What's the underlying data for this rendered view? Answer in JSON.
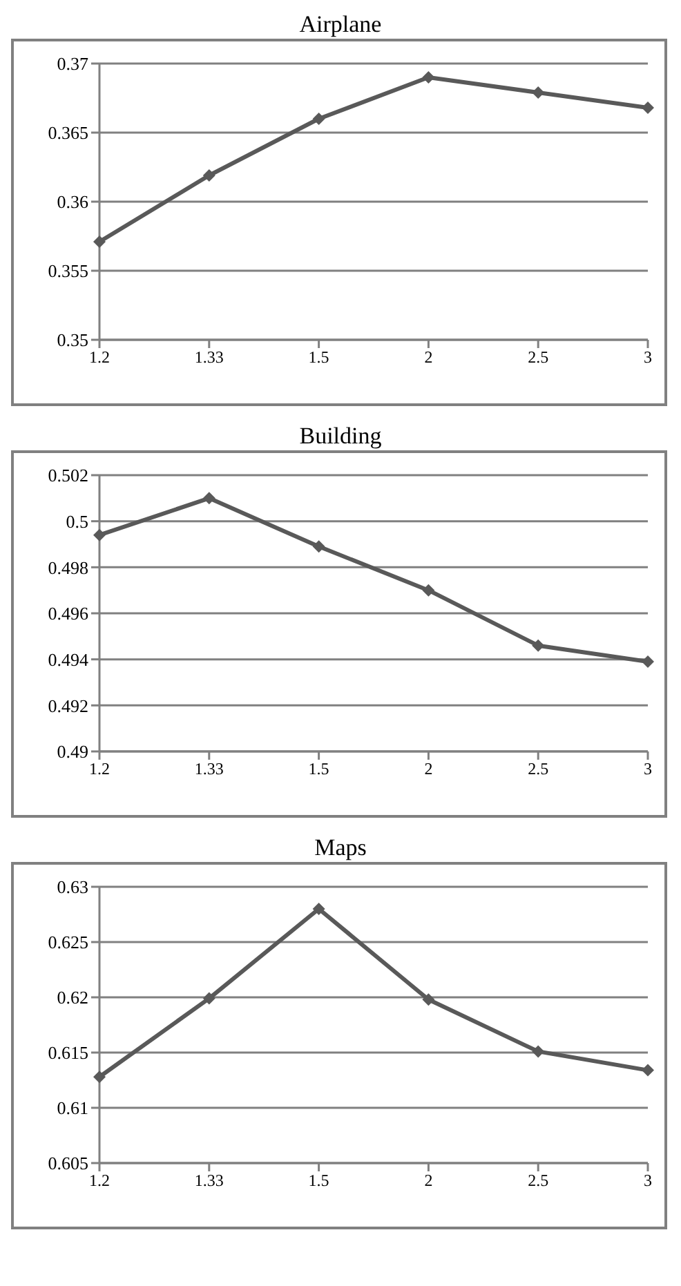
{
  "chart_data": [
    {
      "type": "line",
      "title": "Airplane",
      "categories": [
        "1.2",
        "1.33",
        "1.5",
        "2",
        "2.5",
        "3"
      ],
      "series": [
        {
          "color": "#595959",
          "values": [
            0.3571,
            0.3619,
            0.366,
            0.369,
            0.3679,
            0.3668
          ]
        }
      ],
      "ylim": [
        0.35,
        0.37
      ],
      "yticks": [
        0.35,
        0.355,
        0.36,
        0.365,
        0.37
      ],
      "grid": "y",
      "marker": "diamond",
      "legend": false
    },
    {
      "type": "line",
      "title": "Building",
      "categories": [
        "1.2",
        "1.33",
        "1.5",
        "2",
        "2.5",
        "3"
      ],
      "series": [
        {
          "color": "#595959",
          "values": [
            0.4994,
            0.501,
            0.4989,
            0.497,
            0.4946,
            0.4939
          ]
        }
      ],
      "ylim": [
        0.49,
        0.502
      ],
      "yticks": [
        0.49,
        0.492,
        0.494,
        0.496,
        0.498,
        0.5,
        0.502
      ],
      "grid": "y",
      "marker": "diamond",
      "legend": false
    },
    {
      "type": "line",
      "title": "Maps",
      "categories": [
        "1.2",
        "1.33",
        "1.5",
        "2",
        "2.5",
        "3"
      ],
      "series": [
        {
          "color": "#595959",
          "values": [
            0.6128,
            0.6199,
            0.628,
            0.6198,
            0.6151,
            0.6134
          ]
        }
      ],
      "ylim": [
        0.605,
        0.63
      ],
      "yticks": [
        0.605,
        0.61,
        0.615,
        0.62,
        0.625,
        0.63
      ],
      "grid": "y",
      "marker": "diamond",
      "legend": false
    }
  ]
}
